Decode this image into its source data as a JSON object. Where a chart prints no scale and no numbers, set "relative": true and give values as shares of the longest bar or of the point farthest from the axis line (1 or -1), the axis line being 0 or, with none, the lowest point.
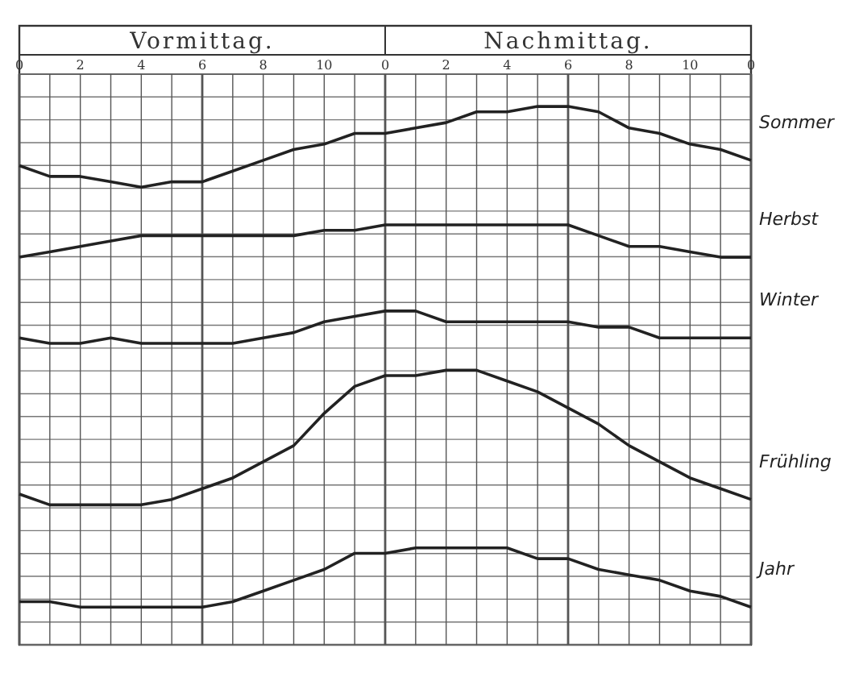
{
  "chart_data": {
    "type": "line",
    "relative": true,
    "grid": true,
    "marker": "none",
    "line_style": "solid",
    "annotations": [
      "Vormittag.",
      "Nachmittag."
    ],
    "categories": [
      "0",
      null,
      "2",
      null,
      "4",
      null,
      "6",
      null,
      "8",
      null,
      "10",
      null,
      "0",
      null,
      "2",
      null,
      "4",
      null,
      "6",
      null,
      "8",
      null,
      "10",
      null,
      "0"
    ],
    "series": [
      {
        "name": "Sommer",
        "color": "#222222",
        "values": [
          0.89,
          0.87,
          0.87,
          0.86,
          0.85,
          0.86,
          0.86,
          0.88,
          0.9,
          0.92,
          0.93,
          0.95,
          0.95,
          0.96,
          0.97,
          0.99,
          0.99,
          1,
          1,
          0.99,
          0.96,
          0.95,
          0.93,
          0.92,
          0.9
        ]
      },
      {
        "name": "Herbst",
        "color": "#222222",
        "values": [
          0.72,
          0.73,
          0.74,
          0.75,
          0.76,
          0.76,
          0.76,
          0.76,
          0.76,
          0.76,
          0.77,
          0.77,
          0.78,
          0.78,
          0.78,
          0.78,
          0.78,
          0.78,
          0.78,
          0.76,
          0.74,
          0.74,
          0.73,
          0.72,
          0.72
        ]
      },
      {
        "name": "Winter",
        "color": "#222222",
        "values": [
          0.57,
          0.56,
          0.56,
          0.57,
          0.56,
          0.56,
          0.56,
          0.56,
          0.57,
          0.58,
          0.6,
          0.61,
          0.62,
          0.62,
          0.6,
          0.6,
          0.6,
          0.6,
          0.6,
          0.59,
          0.59,
          0.57,
          0.57,
          0.57,
          0.57
        ]
      },
      {
        "name": "Frühling",
        "color": "#222222",
        "values": [
          0.28,
          0.26,
          0.26,
          0.26,
          0.26,
          0.27,
          0.29,
          0.31,
          0.34,
          0.37,
          0.43,
          0.48,
          0.5,
          0.5,
          0.51,
          0.51,
          0.49,
          0.47,
          0.44,
          0.41,
          0.37,
          0.34,
          0.31,
          0.29,
          0.27
        ]
      },
      {
        "name": "Jahr",
        "color": "#222222",
        "values": [
          0.08,
          0.08,
          0.07,
          0.07,
          0.07,
          0.07,
          0.07,
          0.08,
          0.1,
          0.12,
          0.14,
          0.17,
          0.17,
          0.18,
          0.18,
          0.18,
          0.18,
          0.16,
          0.16,
          0.14,
          0.13,
          0.12,
          0.1,
          0.09,
          0.07
        ]
      }
    ]
  }
}
